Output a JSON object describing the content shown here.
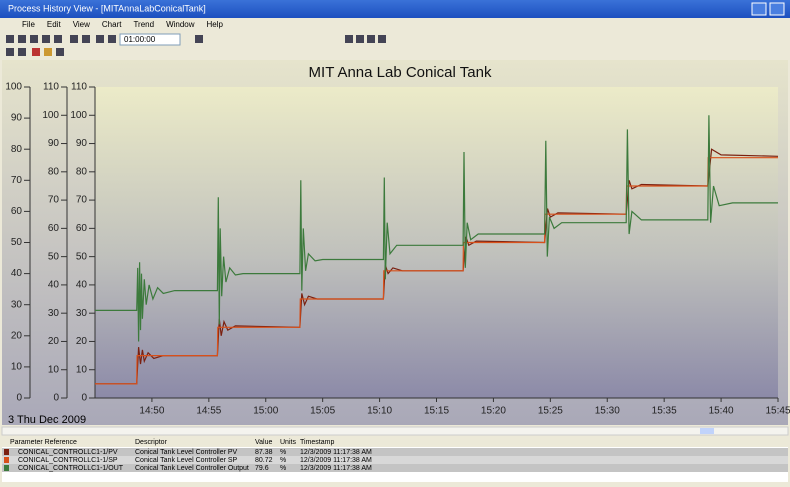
{
  "window": {
    "title": "Process History View - [MITAnnaLabConicalTank]",
    "menu": [
      "File",
      "Edit",
      "View",
      "Chart",
      "Trend",
      "Window",
      "Help"
    ],
    "time_span": "01:00:00",
    "date": "3 Thu Dec 2009"
  },
  "chart_data": {
    "type": "line",
    "title": "MIT Anna  Lab Conical Tank",
    "xlim": [
      "14:45",
      "15:45"
    ],
    "xticks": [
      "14:50",
      "14:55",
      "15:00",
      "15:05",
      "15:10",
      "15:15",
      "15:20",
      "15:25",
      "15:30",
      "15:35",
      "15:40",
      "15:45"
    ],
    "yaxes": [
      {
        "ylim": [
          0,
          100
        ],
        "yticks": [
          0,
          10,
          20,
          30,
          40,
          50,
          60,
          70,
          80,
          90,
          100
        ]
      },
      {
        "ylim": [
          0,
          110
        ],
        "yticks": [
          0,
          10,
          20,
          30,
          40,
          50,
          60,
          70,
          80,
          90,
          100,
          110
        ]
      },
      {
        "ylim": [
          0,
          110
        ],
        "yticks": [
          0,
          10,
          20,
          30,
          40,
          50,
          60,
          70,
          80,
          90,
          100,
          110
        ]
      }
    ],
    "series": [
      {
        "name": "CONICAL_CONTROLLC1-1/PV",
        "color": "#7a2010",
        "x": [
          "14:45:00",
          "14:48:40",
          "14:48:50",
          "14:49:00",
          "14:49:10",
          "14:49:20",
          "14:49:40",
          "14:50:10",
          "14:51:00",
          "14:55:45",
          "14:55:55",
          "14:56:05",
          "14:56:20",
          "14:56:40",
          "14:57:20",
          "15:03:00",
          "15:03:10",
          "15:03:25",
          "15:03:45",
          "15:04:30",
          "15:10:20",
          "15:10:30",
          "15:10:45",
          "15:11:10",
          "15:12:00",
          "15:17:20",
          "15:17:35",
          "15:17:50",
          "15:18:30",
          "15:24:30",
          "15:24:45",
          "15:25:00",
          "15:25:40",
          "15:31:40",
          "15:31:55",
          "15:32:10",
          "15:33:00",
          "15:38:50",
          "15:39:10",
          "15:40:00",
          "15:45:00"
        ],
        "values": [
          5,
          5,
          18,
          12,
          17,
          13,
          16,
          14,
          15,
          15,
          28,
          22,
          27,
          24,
          25.5,
          25,
          37,
          33,
          36,
          35,
          35,
          47,
          44,
          46,
          45,
          45,
          57,
          54,
          55.5,
          55,
          67,
          64,
          65.5,
          65,
          77,
          74,
          75.5,
          75,
          88,
          86,
          85.5
        ]
      },
      {
        "name": "CONICAL_CONTROLLC1-1/SP",
        "color": "#d8501a",
        "x": [
          "14:45:00",
          "14:48:40",
          "14:48:42",
          "14:55:45",
          "14:55:47",
          "15:03:00",
          "15:03:02",
          "15:10:20",
          "15:10:22",
          "15:17:20",
          "15:17:22",
          "15:24:30",
          "15:24:32",
          "15:31:40",
          "15:31:42",
          "15:38:50",
          "15:38:52",
          "15:45:00"
        ],
        "values": [
          5,
          5,
          15,
          15,
          25,
          25,
          35,
          35,
          45,
          45,
          55,
          55,
          65,
          65,
          75,
          75,
          85,
          85
        ]
      },
      {
        "name": "CONICAL_CONTROLLC1-1/OUT",
        "color": "#3c7a3c",
        "x": [
          "14:45:00",
          "14:48:40",
          "14:48:45",
          "14:48:50",
          "14:48:55",
          "14:49:00",
          "14:49:05",
          "14:49:10",
          "14:49:20",
          "14:49:30",
          "14:49:45",
          "14:50:05",
          "14:50:30",
          "14:51:00",
          "14:52:00",
          "14:55:45",
          "14:55:50",
          "14:55:55",
          "14:56:00",
          "14:56:08",
          "14:56:18",
          "14:56:30",
          "14:56:50",
          "14:57:20",
          "14:58:00",
          "15:03:00",
          "15:03:05",
          "15:03:10",
          "15:03:18",
          "15:03:30",
          "15:03:45",
          "15:04:20",
          "15:05:00",
          "15:10:20",
          "15:10:25",
          "15:10:30",
          "15:10:40",
          "15:10:55",
          "15:11:30",
          "15:17:20",
          "15:17:25",
          "15:17:32",
          "15:17:42",
          "15:18:00",
          "15:18:40",
          "15:24:30",
          "15:24:36",
          "15:24:44",
          "15:24:55",
          "15:25:20",
          "15:26:00",
          "15:31:40",
          "15:31:46",
          "15:31:55",
          "15:32:10",
          "15:33:00",
          "15:38:50",
          "15:38:56",
          "15:39:05",
          "15:39:20",
          "15:39:50",
          "15:41:00",
          "15:45:00"
        ],
        "values": [
          31,
          31,
          46,
          20,
          48,
          24,
          44,
          28,
          42,
          33,
          40,
          35,
          39,
          37,
          38,
          38,
          71,
          26,
          60,
          36,
          50,
          41,
          46,
          43.5,
          44,
          44,
          77,
          38,
          60,
          45,
          51,
          48.5,
          49,
          49,
          78,
          42,
          62,
          51,
          54,
          54,
          87,
          46,
          62,
          56,
          58,
          58,
          91,
          50,
          64,
          60,
          62,
          62,
          95,
          58,
          66,
          63,
          63,
          100,
          62,
          75,
          68,
          69,
          69
        ]
      }
    ]
  },
  "table": {
    "header": [
      "Parameter Reference",
      "Descriptor",
      "Value",
      "Units",
      "Timestamp"
    ],
    "rows": [
      {
        "color": "#7a2010",
        "cells": [
          "CONICAL_CONTROLLC1-1/PV",
          "Conical Tank Level Controller PV",
          "87.38",
          "%",
          "12/3/2009 11:17:38 AM"
        ]
      },
      {
        "color": "#d8501a",
        "cells": [
          "CONICAL_CONTROLLC1-1/SP",
          "Conical Tank Level Controller SP",
          "80.72",
          "%",
          "12/3/2009 11:17:38 AM"
        ]
      },
      {
        "color": "#3c7a3c",
        "cells": [
          "CONICAL_CONTROLLC1-1/OUT",
          "Conical Tank Level Controller Output",
          "79.6",
          "%",
          "12/3/2009 11:17:38 AM"
        ]
      }
    ]
  }
}
